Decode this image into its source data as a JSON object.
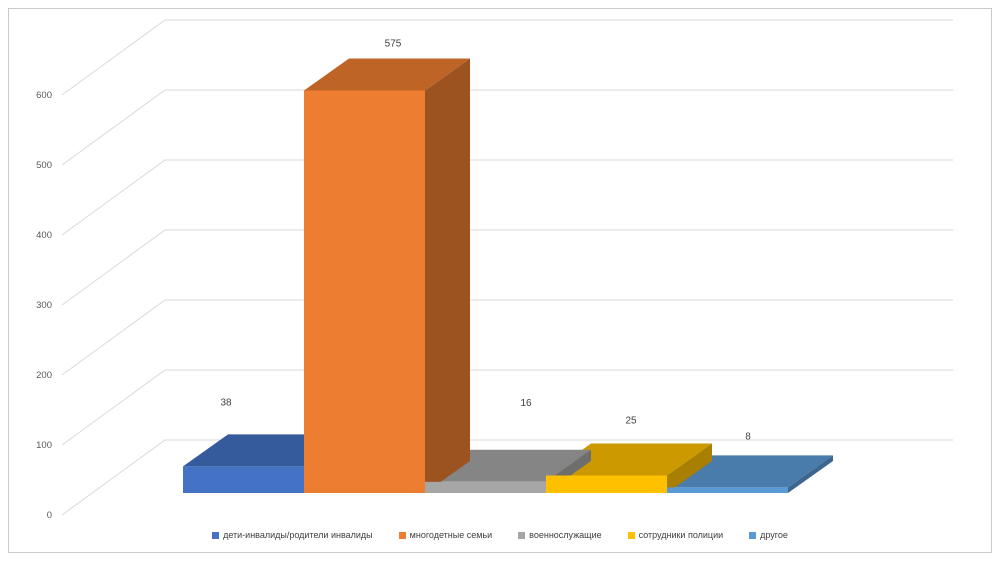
{
  "chart_data": {
    "type": "bar",
    "subtype": "3d-column",
    "title": "",
    "xlabel": "",
    "ylabel": "",
    "ylim": [
      0,
      600
    ],
    "ytick_step": 100,
    "yticks": [
      0,
      100,
      200,
      300,
      400,
      500,
      600
    ],
    "grid": true,
    "legend_position": "bottom",
    "series": [
      {
        "name": "дети-инвалиды/родители инвалиды",
        "value": 38,
        "color": "#4472C4"
      },
      {
        "name": "многодетные семьи",
        "value": 575,
        "color": "#ED7D31"
      },
      {
        "name": "военнослужащие",
        "value": 16,
        "color": "#A6A6A6"
      },
      {
        "name": "сотрудники полиции",
        "value": 25,
        "color": "#FFC000"
      },
      {
        "name": "другое",
        "value": 8,
        "color": "#5B9BD5"
      }
    ],
    "data_labels": [
      "38",
      "575",
      "16",
      "25",
      "8"
    ]
  },
  "colors": {
    "gridline": "#D9D9D9",
    "axis_text": "#595959",
    "label_text": "#404040",
    "frame_border": "#CBCBCB",
    "background": "#FFFFFF"
  }
}
